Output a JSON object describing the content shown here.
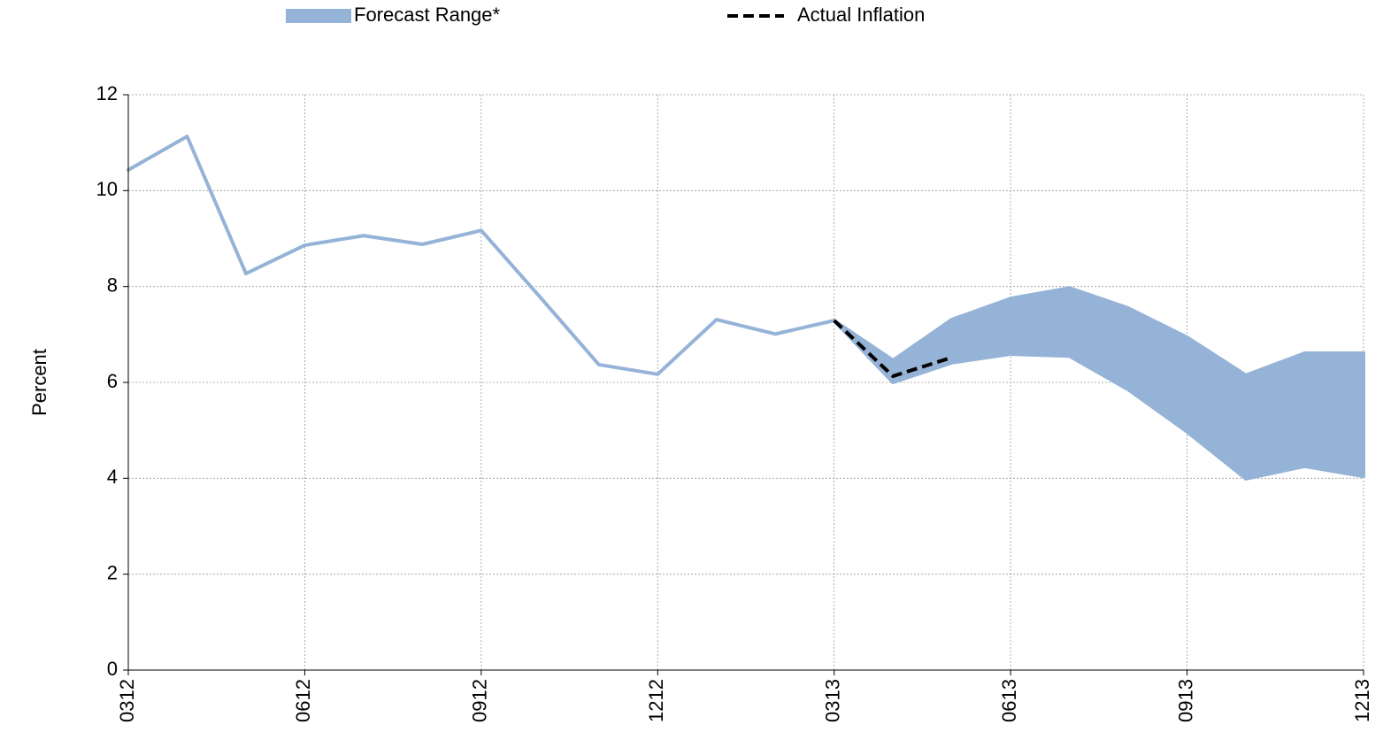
{
  "chart_data": {
    "type": "band-line",
    "y_label": "Percent",
    "categories": [
      "0312",
      null,
      null,
      "0612",
      null,
      null,
      "0912",
      null,
      null,
      "1212",
      null,
      null,
      "0313",
      null,
      null,
      "0613",
      null,
      null,
      "0913",
      null,
      null,
      "1213"
    ],
    "series": [
      {
        "name": "Forecast Range*",
        "color": "#95b3d7",
        "upper": [
          10.43,
          11.13,
          8.27,
          8.86,
          9.06,
          8.88,
          9.17,
          7.78,
          6.37,
          6.17,
          7.31,
          7.01,
          7.29,
          6.46,
          7.31,
          7.75,
          7.97,
          7.55,
          6.94,
          6.15,
          6.61,
          6.61
        ],
        "lower": [
          10.43,
          11.13,
          8.27,
          8.86,
          9.06,
          8.88,
          9.17,
          7.78,
          6.37,
          6.17,
          7.31,
          7.01,
          7.29,
          6.0,
          6.41,
          6.59,
          6.55,
          5.85,
          4.97,
          3.99,
          4.25,
          4.04
        ]
      },
      {
        "name": "Actual Inflation",
        "color": "#000000",
        "dashed": true,
        "values": [
          null,
          null,
          null,
          null,
          null,
          null,
          null,
          null,
          null,
          null,
          null,
          null,
          7.29,
          6.13,
          6.52,
          null,
          null,
          null,
          null,
          null,
          null,
          null
        ]
      }
    ],
    "ylim": [
      0,
      12
    ],
    "yticks": [
      0,
      2,
      4,
      6,
      8,
      10,
      12
    ],
    "grid": true
  }
}
